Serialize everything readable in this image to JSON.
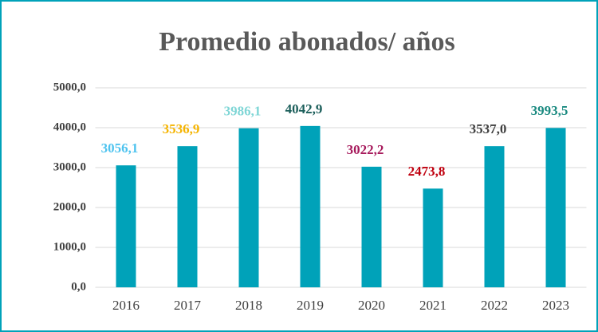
{
  "chart_data": {
    "type": "bar",
    "title": "Promedio abonados/ años",
    "categories": [
      "2016",
      "2017",
      "2018",
      "2019",
      "2020",
      "2021",
      "2022",
      "2023"
    ],
    "values": [
      3056.1,
      3536.9,
      3986.1,
      4042.9,
      3022.2,
      2473.8,
      3537.0,
      3993.5
    ],
    "value_labels": [
      "3056,1",
      "3536,9",
      "3986,1",
      "4042,9",
      "3022,2",
      "2473,8",
      "3537,0",
      "3993,5"
    ],
    "label_colors": [
      "#4dc3ef",
      "#f5b400",
      "#7fd6d6",
      "#1b5e5a",
      "#a6195b",
      "#c0000f",
      "#404040",
      "#1a8a80"
    ],
    "color": "#00a2b9",
    "ylim": [
      0,
      5000
    ],
    "yticks": [
      {
        "value": 0,
        "label": "0,0"
      },
      {
        "value": 1000,
        "label": "1000,0"
      },
      {
        "value": 2000,
        "label": "2000,0"
      },
      {
        "value": 3000,
        "label": "3000,0"
      },
      {
        "value": 4000,
        "label": "4000,0"
      },
      {
        "value": 5000,
        "label": "5000,0"
      }
    ],
    "grid": true
  }
}
